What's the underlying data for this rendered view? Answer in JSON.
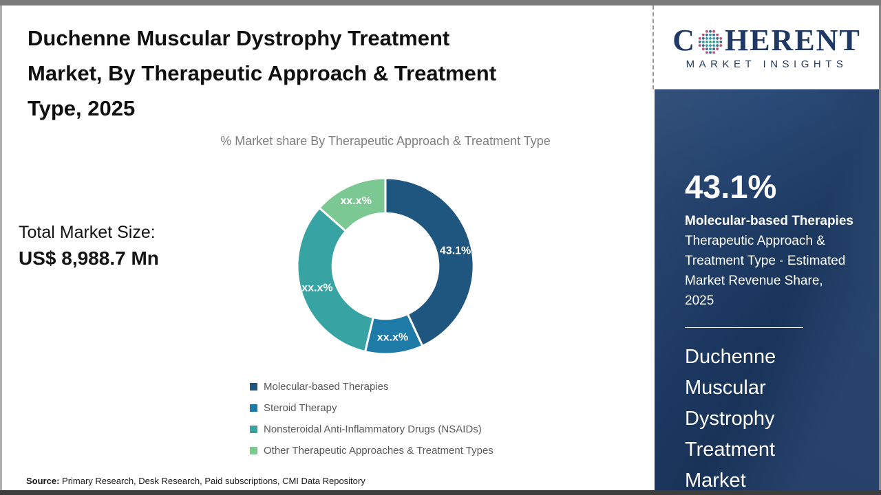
{
  "header": {
    "title": "Duchenne Muscular Dystrophy Treatment\nMarket, By Therapeutic Approach & Treatment\nType, 2025",
    "subtitle": "% Market share By Therapeutic Approach & Treatment Type"
  },
  "logo": {
    "word_start": "C",
    "word_end": "HERENT",
    "subtitle": "MARKET INSIGHTS",
    "navy": "#1f3864",
    "globe_colors": [
      "#3aa75f",
      "#2d9aa8",
      "#c14e74",
      "#39668c"
    ]
  },
  "total": {
    "label": "Total Market Size:",
    "value": "US$ 8,988.7 Mn"
  },
  "chart_data": {
    "type": "pie",
    "subtype": "donut",
    "title": "% Market share By Therapeutic Approach & Treatment Type",
    "categories": [
      "Molecular-based Therapies",
      "Steroid Therapy",
      "Nonsteroidal Anti-Inflammatory Drugs (NSAIDs)",
      "Other Therapeutic Approaches & Treatment Types"
    ],
    "values": [
      43.1,
      10.6,
      32.8,
      13.5
    ],
    "labels": [
      "43.1%",
      "xx.x%",
      "xx.x%",
      "xx.x%"
    ],
    "colors": [
      "#1f567f",
      "#1e7ba8",
      "#38a3a3",
      "#7cc893"
    ],
    "hole_ratio": 0.6,
    "start_angle_deg": 0,
    "direction": "clockwise",
    "legend_position": "bottom",
    "label_color": "#ffffff",
    "note": "Only the 43.1% slice value is disclosed; other slices are masked as xx.x% in the source image (values estimated from arc angles)"
  },
  "sidebar": {
    "stat_value": "43.1%",
    "stat_highlight": "Molecular-based Therapies",
    "stat_rest": " Therapeutic Approach & Treatment Type - Estimated Market Revenue Share, 2025",
    "market_name": "Duchenne\nMuscular\nDystrophy\nTreatment\nMarket",
    "panel_color": "#1d3c67"
  },
  "source": {
    "label": "Source:",
    "text": " Primary Research, Desk Research, Paid subscriptions, CMI Data Repository"
  }
}
